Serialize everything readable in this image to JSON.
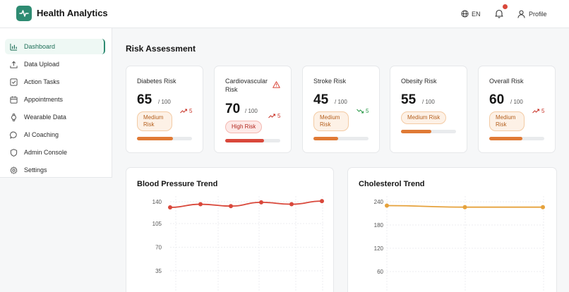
{
  "header": {
    "app_title": "Health Analytics",
    "language": "EN",
    "profile_label": "Profile",
    "notification_dot_color": "#d9483b"
  },
  "sidebar": {
    "items": [
      {
        "label": "Dashboard",
        "icon": "bar-chart-icon",
        "active": true
      },
      {
        "label": "Data Upload",
        "icon": "upload-icon"
      },
      {
        "label": "Action Tasks",
        "icon": "checkbox-icon"
      },
      {
        "label": "Appointments",
        "icon": "calendar-icon"
      },
      {
        "label": "Wearable Data",
        "icon": "watch-icon"
      },
      {
        "label": "AI Coaching",
        "icon": "chat-bubble-icon"
      },
      {
        "label": "Admin Console",
        "icon": "shield-icon"
      },
      {
        "label": "Settings",
        "icon": "gear-icon"
      }
    ]
  },
  "main": {
    "section_title": "Risk Assessment",
    "risk_cards": [
      {
        "title": "Diabetes Risk",
        "value": "65",
        "max": "/ 100",
        "level": "Medium Risk",
        "trend": "5",
        "trend_dir": "up",
        "progress": 0.65
      },
      {
        "title": "Cardiovascular Risk",
        "value": "70",
        "max": "/ 100",
        "level": "High Risk",
        "trend": "5",
        "trend_dir": "up",
        "progress": 0.7,
        "alert": true
      },
      {
        "title": "Stroke Risk",
        "value": "45",
        "max": "/ 100",
        "level": "Medium Risk",
        "trend": "5",
        "trend_dir": "down",
        "progress": 0.45
      },
      {
        "title": "Obesity Risk",
        "value": "55",
        "max": "/ 100",
        "level": "Medium Risk",
        "progress": 0.55
      },
      {
        "title": "Overall Risk",
        "value": "60",
        "max": "/ 100",
        "level": "Medium Risk",
        "trend": "5",
        "trend_dir": "up",
        "progress": 0.6
      }
    ],
    "colors": {
      "accent": "#2e8b72",
      "medium": "#e07a35",
      "high": "#d9483b",
      "trend_up": "#c9362b",
      "trend_down": "#2c9a4a"
    }
  },
  "chart_data": [
    {
      "type": "line",
      "title": "Blood Pressure Trend",
      "y_ticks": [
        140,
        105,
        70,
        35
      ],
      "ylim": [
        0,
        150
      ],
      "grid": true,
      "series": [
        {
          "color": "#d9483b",
          "values": [
            131,
            136,
            133,
            139,
            136,
            141
          ]
        }
      ]
    },
    {
      "type": "line",
      "title": "Cholesterol Trend",
      "y_ticks": [
        240,
        180,
        120,
        60
      ],
      "ylim": [
        0,
        260
      ],
      "grid": true,
      "series": [
        {
          "color": "#e6a23c",
          "values": [
            230,
            226,
            226
          ]
        }
      ]
    }
  ]
}
